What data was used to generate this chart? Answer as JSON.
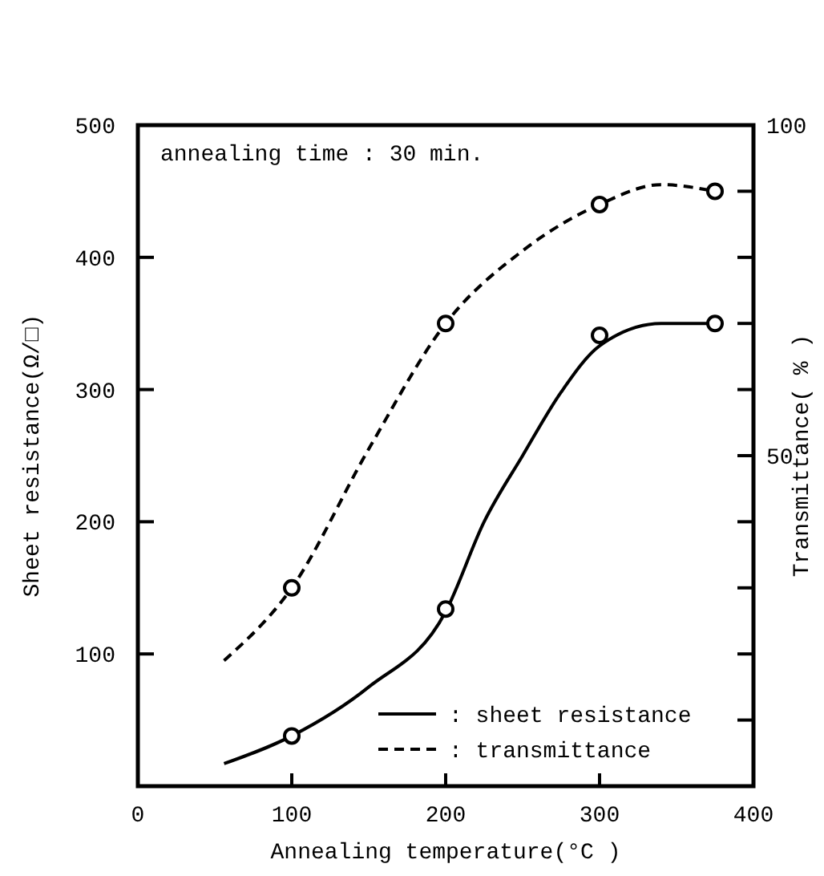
{
  "chart_data": {
    "type": "line",
    "xlabel": "Annealing temperature(°C )",
    "ylabel": "Sheet resistance(Ω/□)",
    "y2label": "Transmittance( % )",
    "annotations": [
      "annealing time : 30 min."
    ],
    "xlim": [
      0,
      400
    ],
    "xticks": [
      0,
      100,
      200,
      300,
      400
    ],
    "ylim": [
      0,
      500
    ],
    "yticks": [
      100,
      200,
      300,
      400,
      500
    ],
    "y2lim": [
      0,
      100
    ],
    "y2ticks": [
      {
        "value": 10,
        "label": null
      },
      {
        "value": 20,
        "label": null
      },
      {
        "value": 30,
        "label": null
      },
      {
        "value": 40,
        "label": null
      },
      50,
      {
        "value": 60,
        "label": null
      },
      {
        "value": 70,
        "label": null
      },
      {
        "value": 80,
        "label": null
      },
      {
        "value": 90,
        "label": null
      },
      100
    ],
    "legend": "bottom right",
    "series": [
      {
        "name": ": sheet resistance",
        "color": "#000000",
        "line_style": "solid",
        "marker": "none",
        "x": [
          56,
          100,
          150,
          200,
          225,
          250,
          275,
          300,
          340,
          375
        ],
        "values": [
          17,
          38,
          75,
          132,
          200,
          250,
          298,
          333,
          350,
          350
        ]
      },
      {
        "name": ": transmittance",
        "axis": "y2",
        "color": "#000000",
        "line_style": "dashed",
        "marker": "none",
        "x": [
          56,
          100,
          150,
          200,
          250,
          300,
          340,
          375
        ],
        "values": [
          19,
          30,
          51,
          70,
          81,
          88,
          91,
          90
        ]
      },
      {
        "type": "scatter",
        "color": "#000000",
        "marker": "circle",
        "x": [
          100,
          200,
          300,
          375
        ],
        "values": [
          38,
          134,
          341,
          350
        ]
      },
      {
        "type": "scatter",
        "axis": "y2",
        "color": "#000000",
        "marker": "circle",
        "x": [
          100,
          200,
          300,
          375
        ],
        "values": [
          30,
          70,
          88,
          90
        ]
      }
    ]
  }
}
